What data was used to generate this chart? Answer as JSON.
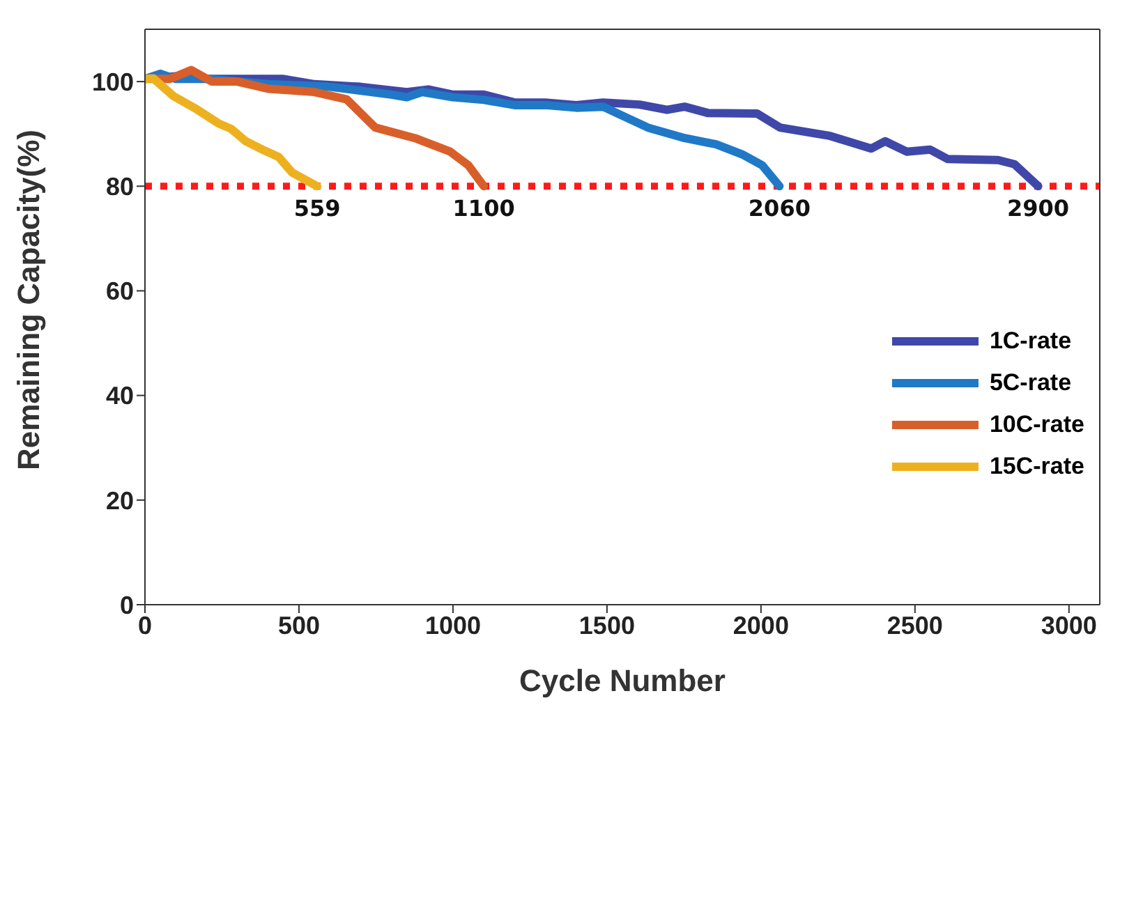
{
  "chart_data": {
    "type": "line",
    "xlabel": "Cycle Number",
    "ylabel": "Remaining Capacity(%)",
    "xlim": [
      0,
      3100
    ],
    "ylim": [
      0,
      110
    ],
    "xticks": [
      0,
      500,
      1000,
      1500,
      2000,
      2500,
      3000
    ],
    "yticks": [
      0,
      20,
      40,
      60,
      80,
      100
    ],
    "grid": false,
    "legend": "right",
    "marker": "none",
    "line_style": "solid",
    "series": [
      {
        "name": "1C-rate",
        "color": "#3f48a8",
        "x": [
          0,
          100,
          200,
          300,
          450,
          550,
          700,
          850,
          920,
          1000,
          1100,
          1200,
          1300,
          1400,
          1487,
          1606,
          1695,
          1752,
          1827,
          1987,
          2062,
          2225,
          2358,
          2403,
          2473,
          2549,
          2606,
          2770,
          2823,
          2900
        ],
        "values": [
          100.5,
          101,
          100.5,
          100.5,
          100.5,
          99.5,
          99,
          98,
          98.5,
          97.5,
          97.5,
          96,
          96,
          95.5,
          96,
          95.6,
          94.6,
          95.2,
          94,
          93.9,
          91.2,
          89.6,
          87.2,
          88.6,
          86.6,
          87,
          85.2,
          85,
          84.2,
          80
        ]
      },
      {
        "name": "5C-rate",
        "color": "#2079c7",
        "x": [
          0,
          50,
          100,
          200,
          400,
          600,
          800,
          850,
          900,
          1000,
          1100,
          1200,
          1300,
          1400,
          1487,
          1633,
          1752,
          1854,
          1942,
          2004,
          2060
        ],
        "values": [
          100.5,
          101.5,
          100.5,
          100.5,
          99.5,
          99,
          97.5,
          97,
          98,
          97,
          96.5,
          95.5,
          95.5,
          95,
          95.2,
          91.2,
          89.2,
          88,
          86,
          84,
          80
        ]
      },
      {
        "name": "10C-rate",
        "color": "#d95f2a",
        "x": [
          0,
          80,
          150,
          217,
          300,
          403,
          550,
          655,
          748,
          876,
          991,
          1050,
          1100
        ],
        "values": [
          100.5,
          100.5,
          102.2,
          100,
          100,
          98.6,
          98,
          96.6,
          91.2,
          89.2,
          86.6,
          84,
          80
        ]
      },
      {
        "name": "15C-rate",
        "color": "#edb120",
        "x": [
          0,
          27,
          93,
          160,
          239,
          279,
          327,
          381,
          434,
          478,
          559
        ],
        "values": [
          100.5,
          100.6,
          97.2,
          95,
          92,
          91,
          88.6,
          87,
          85.6,
          82.6,
          80
        ]
      }
    ],
    "ref_lines": [
      {
        "axis": "y",
        "value": 80,
        "color": "#ff1a1a",
        "line_style": "dotted"
      }
    ],
    "annotations": [
      {
        "text": "559",
        "x": 559,
        "y": 80
      },
      {
        "text": "1100",
        "x": 1100,
        "y": 80
      },
      {
        "text": "2060",
        "x": 2060,
        "y": 80
      },
      {
        "text": "2900",
        "x": 2900,
        "y": 80
      }
    ]
  }
}
